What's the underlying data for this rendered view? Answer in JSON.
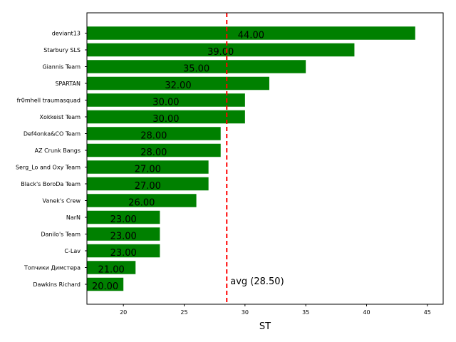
{
  "chart_data": {
    "type": "bar",
    "orientation": "horizontal",
    "categories": [
      "deviant13",
      "Starbury SLS",
      "Giannis Team",
      "SPARTAN",
      "fr0mhell traumasquad",
      "Xokkeist Team",
      "Def4onka&CO Team",
      "AZ Crunk Bangs",
      "Serg_Lo and Oxy Team",
      "Black's BoroDa Team",
      "Vanek's Crew",
      "NarN",
      "Danilo's Team",
      "C-Lav",
      "Топчики Димстера",
      "Dawkins Richard"
    ],
    "values": [
      44,
      39,
      35,
      32,
      30,
      30,
      28,
      28,
      27,
      27,
      26,
      23,
      23,
      23,
      21,
      20
    ],
    "value_labels": [
      "44.00",
      "39.00",
      "35.00",
      "32.00",
      "30.00",
      "30.00",
      "28.00",
      "28.00",
      "27.00",
      "27.00",
      "26.00",
      "23.00",
      "23.00",
      "23.00",
      "21.00",
      "20.00"
    ],
    "xlabel": "ST",
    "xlim": [
      17,
      46.3
    ],
    "xticks": [
      "20",
      "25",
      "30",
      "35",
      "40",
      "45"
    ],
    "bar_color": "#008000",
    "reference_line": {
      "value": 28.5,
      "label": "avg (28.50)",
      "color": "#ff0000",
      "style": "dashed"
    },
    "grid": false,
    "legend": "none"
  }
}
